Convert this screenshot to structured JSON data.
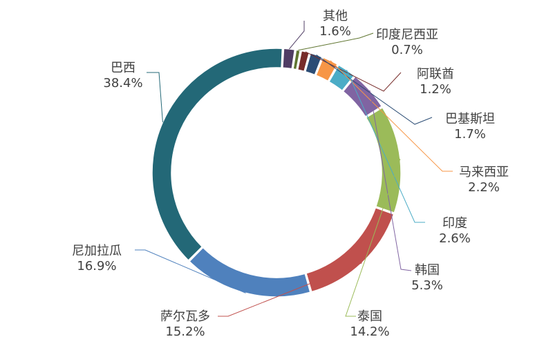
{
  "chart_data": {
    "type": "pie",
    "donut": true,
    "title": "",
    "legend": "none",
    "label_color": "#404040",
    "slices": [
      {
        "label": "其他",
        "value": 1.6,
        "value_label": "1.6%",
        "color": "#4f3c64"
      },
      {
        "label": "印度尼西亚",
        "value": 0.7,
        "value_label": "0.7%",
        "color": "#5f7530"
      },
      {
        "label": "阿联酋",
        "value": 1.2,
        "value_label": "1.2%",
        "color": "#772c2a"
      },
      {
        "label": "巴基斯坦",
        "value": 1.7,
        "value_label": "1.7%",
        "color": "#2c4d75"
      },
      {
        "label": "马来西亚",
        "value": 2.2,
        "value_label": "2.2%",
        "color": "#f79646"
      },
      {
        "label": "印度",
        "value": 2.6,
        "value_label": "2.6%",
        "color": "#4bacc6"
      },
      {
        "label": "韩国",
        "value": 5.3,
        "value_label": "5.3%",
        "color": "#8064a2"
      },
      {
        "label": "泰国",
        "value": 14.2,
        "value_label": "14.2%",
        "color": "#9bbb59"
      },
      {
        "label": "萨尔瓦多",
        "value": 15.2,
        "value_label": "15.2%",
        "color": "#c0504d"
      },
      {
        "label": "尼加拉瓜",
        "value": 16.9,
        "value_label": "16.9%",
        "color": "#4f81bd"
      },
      {
        "label": "巴西",
        "value": 38.4,
        "value_label": "38.4%",
        "color": "#236877"
      }
    ]
  }
}
